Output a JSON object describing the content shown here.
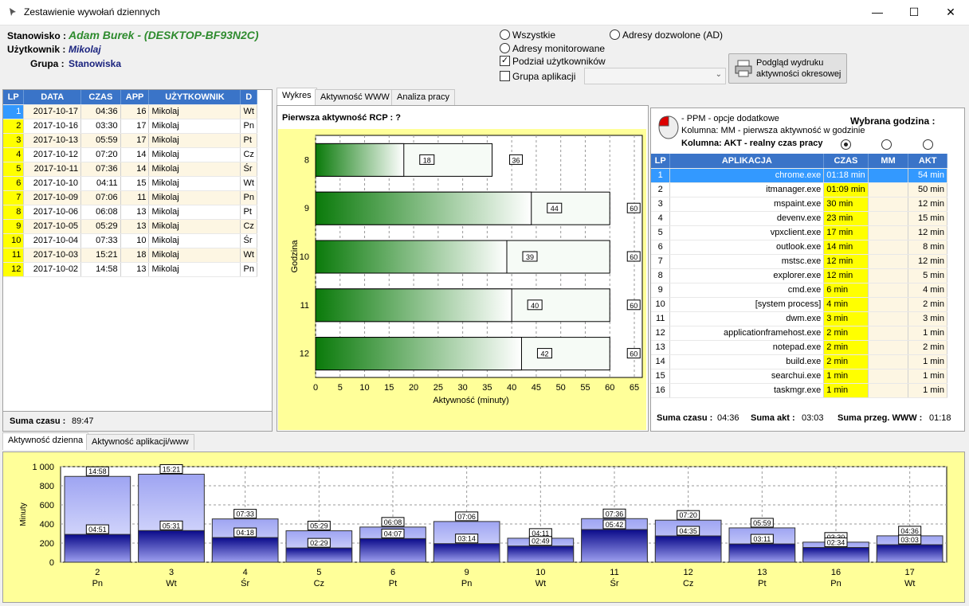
{
  "window": {
    "title": "Zestawienie wywołań dziennych",
    "min": "—",
    "max": "☐",
    "close": "✕"
  },
  "info": {
    "stanowisko_label": "Stanowisko :",
    "stanowisko_value": "Adam Burek - (DESKTOP-BF93N2C)",
    "uzytkownik_label": "Użytkownik :",
    "uzytkownik_value": "Mikolaj",
    "grupa_label": "Grupa :",
    "grupa_value": "Stanowiska"
  },
  "filters": {
    "wszystkie": "Wszystkie",
    "adresy_dozwolone": "Adresy dozwolone (AD)",
    "adresy_monitorowane": "Adresy monitorowane",
    "podzial": "Podział użytkowników",
    "grupa_aplikacji": "Grupa aplikacji",
    "grupa_select_value": "",
    "preview_button": "Podgląd wydruku aktywności okresowej"
  },
  "days_table": {
    "headers": [
      "LP",
      "DATA",
      "CZAS",
      "APP",
      "UŻYTKOWNIK",
      "D"
    ],
    "rows": [
      [
        "1",
        "2017-10-17",
        "04:36",
        "16",
        "Mikolaj",
        "Wt"
      ],
      [
        "2",
        "2017-10-16",
        "03:30",
        "17",
        "Mikolaj",
        "Pn"
      ],
      [
        "3",
        "2017-10-13",
        "05:59",
        "17",
        "Mikolaj",
        "Pt"
      ],
      [
        "4",
        "2017-10-12",
        "07:20",
        "14",
        "Mikolaj",
        "Cz"
      ],
      [
        "5",
        "2017-10-11",
        "07:36",
        "14",
        "Mikolaj",
        "Śr"
      ],
      [
        "6",
        "2017-10-10",
        "04:11",
        "15",
        "Mikolaj",
        "Wt"
      ],
      [
        "7",
        "2017-10-09",
        "07:06",
        "11",
        "Mikolaj",
        "Pn"
      ],
      [
        "8",
        "2017-10-06",
        "06:08",
        "13",
        "Mikolaj",
        "Pt"
      ],
      [
        "9",
        "2017-10-05",
        "05:29",
        "13",
        "Mikolaj",
        "Cz"
      ],
      [
        "10",
        "2017-10-04",
        "07:33",
        "10",
        "Mikolaj",
        "Śr"
      ],
      [
        "11",
        "2017-10-03",
        "15:21",
        "18",
        "Mikolaj",
        "Wt"
      ],
      [
        "12",
        "2017-10-02",
        "14:58",
        "13",
        "Mikolaj",
        "Pn"
      ]
    ],
    "sum_label": "Suma czasu :",
    "sum_value": "89:47"
  },
  "mid_tabs": [
    "Wykres",
    "Aktywność WWW",
    "Analiza pracy"
  ],
  "hour_chart_header": "Pierwsza aktywność RCP : ?",
  "right_panel": {
    "ppm": "- PPM - opcje dodatkowe",
    "kolumna_mm": "Kolumna: MM - pierwsza aktywność w godzinie",
    "kolumna_akt": "Kolumna: AKT - realny czas pracy",
    "wybrana": "Wybrana godzina :"
  },
  "apps_table": {
    "headers": [
      "LP",
      "APLIKACJA",
      "CZAS",
      "MM",
      "AKT"
    ],
    "rows": [
      [
        "1",
        "chrome.exe",
        "01:18 min",
        "",
        "54 min"
      ],
      [
        "2",
        "itmanager.exe",
        "01:09 min",
        "",
        "50 min"
      ],
      [
        "3",
        "mspaint.exe",
        "30 min",
        "",
        "12 min"
      ],
      [
        "4",
        "devenv.exe",
        "23 min",
        "",
        "15 min"
      ],
      [
        "5",
        "vpxclient.exe",
        "17 min",
        "",
        "12 min"
      ],
      [
        "6",
        "outlook.exe",
        "14 min",
        "",
        "8 min"
      ],
      [
        "7",
        "mstsc.exe",
        "12 min",
        "",
        "12 min"
      ],
      [
        "8",
        "explorer.exe",
        "12 min",
        "",
        "5 min"
      ],
      [
        "9",
        "cmd.exe",
        "6 min",
        "",
        "4 min"
      ],
      [
        "10",
        "[system process]",
        "4 min",
        "",
        "2 min"
      ],
      [
        "11",
        "dwm.exe",
        "3 min",
        "",
        "3 min"
      ],
      [
        "12",
        "applicationframehost.exe",
        "2 min",
        "",
        "1 min"
      ],
      [
        "13",
        "notepad.exe",
        "2 min",
        "",
        "2 min"
      ],
      [
        "14",
        "build.exe",
        "2 min",
        "",
        "1 min"
      ],
      [
        "15",
        "searchui.exe",
        "1 min",
        "",
        "1 min"
      ],
      [
        "16",
        "taskmgr.exe",
        "1 min",
        "",
        "1 min"
      ]
    ],
    "sum_czasu_label": "Suma czasu :",
    "sum_czasu_value": "04:36",
    "sum_akt_label": "Suma akt :",
    "sum_akt_value": "03:03",
    "sum_www_label": "Suma przeg. WWW :",
    "sum_www_value": "01:18"
  },
  "bottom_tabs": [
    "Aktywność dzienna",
    "Aktywność aplikacji/www"
  ],
  "colors": {
    "header_blue": "#3a74c8",
    "selected": "#3399ff",
    "yellow": "#ffff00",
    "green": "#0a7a0a",
    "bar_light": "#aab0f0",
    "bar_dark": "#1a1ab0"
  },
  "chart_data": [
    {
      "type": "bar",
      "orientation": "horizontal",
      "title": "",
      "ylabel": "Godzina",
      "xlabel": "Aktywność (minuty)",
      "xlim": [
        0,
        65
      ],
      "xticks": [
        "0",
        "5",
        "10",
        "15",
        "20",
        "25",
        "30",
        "35",
        "40",
        "45",
        "50",
        "55",
        "60",
        "65"
      ],
      "categories": [
        "8",
        "9",
        "10",
        "11",
        "12"
      ],
      "series": [
        {
          "values": [
            18,
            44,
            39,
            40,
            42
          ]
        },
        {
          "values": [
            36,
            60,
            60,
            60,
            60
          ]
        }
      ],
      "grid": true
    },
    {
      "type": "bar",
      "title": "",
      "ylabel": "Minuty",
      "ylim": [
        0,
        1000
      ],
      "yticks": [
        "0",
        "200",
        "400",
        "600",
        "800",
        "1 000"
      ],
      "categories": [
        "2",
        "3",
        "4",
        "5",
        "6",
        "9",
        "10",
        "11",
        "12",
        "13",
        "16",
        "17"
      ],
      "day_labels": [
        "Pn",
        "Wt",
        "Śr",
        "Cz",
        "Pt",
        "Pn",
        "Wt",
        "Śr",
        "Cz",
        "Pt",
        "Pn",
        "Wt"
      ],
      "series": [
        {
          "values": [
            898,
            921,
            453,
            329,
            368,
            426,
            251,
            456,
            440,
            359,
            210,
            276
          ],
          "labels": [
            "14:58",
            "15:21",
            "07:33",
            "05:29",
            "06:08",
            "07:06",
            "04:11",
            "07:36",
            "07:20",
            "05:59",
            "03:30",
            "04:36"
          ]
        },
        {
          "values": [
            291,
            331,
            258,
            149,
            247,
            194,
            169,
            342,
            275,
            191,
            154,
            183
          ],
          "labels": [
            "04:51",
            "05:31",
            "04:18",
            "02:29",
            "04:07",
            "03:14",
            "02:49",
            "05:42",
            "04:35",
            "03:11",
            "02:34",
            "03:03"
          ]
        }
      ],
      "grid": true
    }
  ]
}
